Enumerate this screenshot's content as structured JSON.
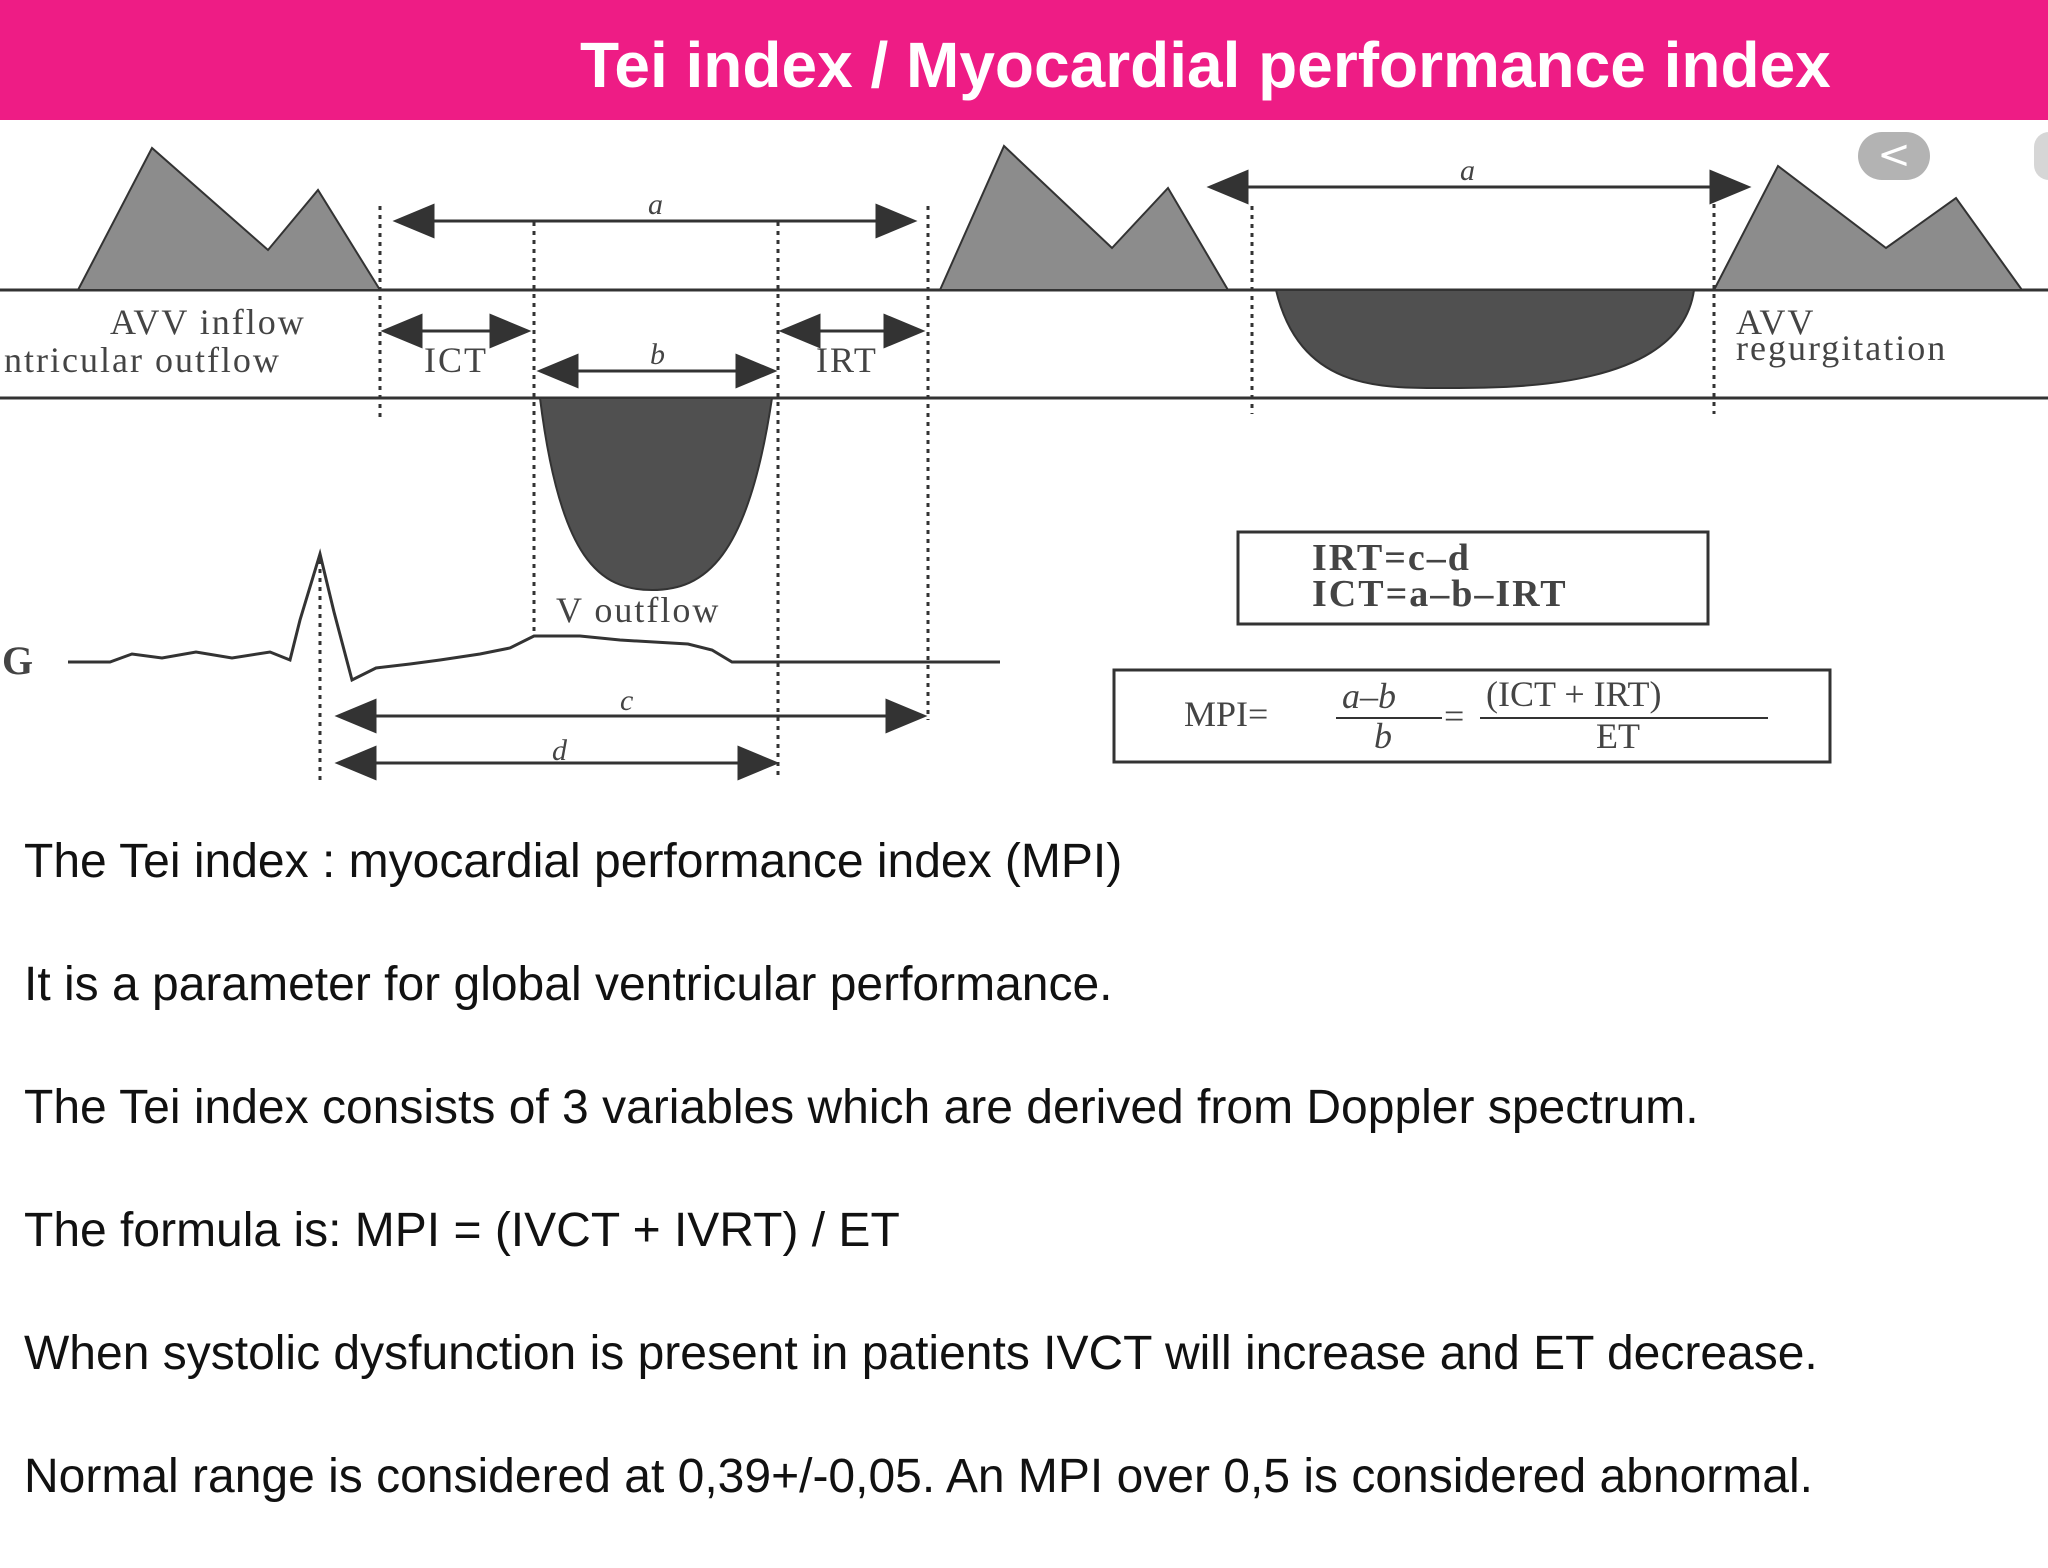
{
  "header": {
    "title": "Tei index / Myocardial performance index"
  },
  "diagram": {
    "labels": {
      "a_left": "a",
      "a_right": "a",
      "b": "b",
      "c": "c",
      "d": "d",
      "avv_inflow": "AVV inflow",
      "ventricular_outflow": "ntricular outflow",
      "ict": "ICT",
      "irt": "IRT",
      "v_outflow": "V outflow",
      "avv_regurg_1": "AVV",
      "avv_regurg_2": "regurgitation",
      "ecg": "G"
    },
    "equations": {
      "irt": "IRT=c–d",
      "ict": "ICT=a–b–IRT"
    },
    "mpi": {
      "lhs": "MPI=",
      "frac1_num": "a–b",
      "frac1_den": "b",
      "equals": "=",
      "frac2_num": "(ICT + IRT)",
      "frac2_den": "ET"
    }
  },
  "controls": {
    "back_icon": "chevron-left-icon",
    "back_glyph": "<"
  },
  "body": {
    "lines": [
      "The Tei index : myocardial performance index (MPI)",
      "It is a parameter for global ventricular performance.",
      "The Tei index consists of 3 variables which are derived from Doppler spectrum.",
      "The formula is: MPI = (IVCT + IVRT) / ET",
      "When systolic dysfunction is present in patients IVCT will increase and ET decrease.",
      "Normal range is considered at 0,39+/-0,05.  An MPI over 0,5 is considered abnormal."
    ]
  },
  "colors": {
    "header": "#ee1c85",
    "shape": "#8c8c8c",
    "dark_shape": "#505050"
  }
}
